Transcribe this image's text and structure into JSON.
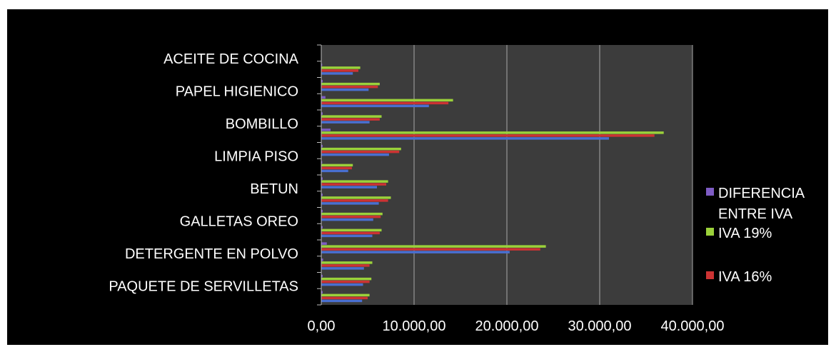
{
  "chart_data": {
    "type": "bar",
    "orientation": "horizontal",
    "title": "",
    "xlabel": "",
    "ylabel": "",
    "xlim": [
      0,
      40000
    ],
    "x_ticks": [
      0,
      10000,
      20000,
      30000,
      40000
    ],
    "x_tick_labels": [
      "0,00",
      "10.000,00",
      "20.000,00",
      "30.000,00",
      "40.000,00"
    ],
    "grid": true,
    "legend_position": "right",
    "plot_background": "#3c3c3c",
    "figure_background": "#000000",
    "category_labels": [
      {
        "text": "PAQUETE DE SERVILLETAS"
      },
      {
        "text": "DETERGENTE EN POLVO"
      },
      {
        "text": "GALLETAS OREO"
      },
      {
        "text": "BETUN"
      },
      {
        "text": "LIMPIA PISO"
      },
      {
        "text": "BOMBILLO"
      },
      {
        "text": "PAPEL HIGIENICO"
      },
      {
        "text": "ACEITE DE COCINA"
      }
    ],
    "categories": [
      "slot-1",
      "slot-2",
      "slot-3",
      "slot-4",
      "slot-5",
      "slot-6",
      "slot-7",
      "slot-8",
      "slot-9",
      "slot-10",
      "slot-11",
      "slot-12",
      "slot-13",
      "slot-14",
      "slot-15",
      "slot-16"
    ],
    "series": [
      {
        "name": "IVA 16%",
        "color": "#4a6fd0",
        "values": [
          4400,
          4500,
          4600,
          20300,
          5500,
          5600,
          6200,
          6000,
          2900,
          7300,
          31000,
          5200,
          11600,
          5100,
          3400,
          0
        ]
      },
      {
        "name": "IVA 16%",
        "color": "#cc3333",
        "values": [
          5000,
          5200,
          5200,
          23600,
          6300,
          6400,
          7200,
          7000,
          3300,
          8400,
          35900,
          6300,
          13700,
          6100,
          4000,
          0
        ]
      },
      {
        "name": "IVA 19%",
        "color": "#9bd13a",
        "values": [
          5200,
          5400,
          5500,
          24200,
          6500,
          6600,
          7500,
          7200,
          3400,
          8600,
          36900,
          6500,
          14200,
          6300,
          4200,
          0
        ]
      },
      {
        "name": "DIFERENCIA ENTRE IVA",
        "color": "#7e5cc4",
        "values": [
          150,
          150,
          200,
          600,
          150,
          150,
          150,
          150,
          100,
          150,
          1000,
          150,
          450,
          150,
          100,
          0
        ]
      }
    ]
  },
  "legend": {
    "items": [
      {
        "label_lines": [
          "DIFERENCIA",
          "ENTRE IVA"
        ],
        "color": "#7e5cc4"
      },
      {
        "label_lines": [
          "IVA  19%"
        ],
        "color": "#9bd13a"
      },
      {
        "label_lines": [
          "IVA 16%"
        ],
        "color": "#cc3333"
      }
    ]
  }
}
